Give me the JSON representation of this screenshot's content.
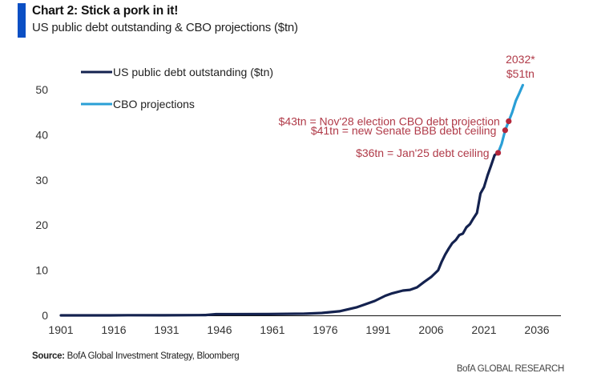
{
  "header": {
    "title": "Chart 2: Stick a pork in it!",
    "subtitle": "US public debt outstanding & CBO projections ($tn)"
  },
  "footer": {
    "source_label": "Source:",
    "source_text": "BofA Global Investment Strategy, Bloomberg",
    "brand": "BofA GLOBAL RESEARCH"
  },
  "colors": {
    "accent": "#0b4fc4",
    "debt_line": "#14224f",
    "projection_line": "#2a9fd6",
    "annotation": "#b03a48",
    "marker": "#b3283c"
  },
  "chart_data": {
    "type": "line",
    "title": "Chart 2: Stick a pork in it!",
    "subtitle": "US public debt outstanding & CBO projections ($tn)",
    "xlabel": "",
    "ylabel": "",
    "xlim": [
      1901,
      2045
    ],
    "ylim": [
      0,
      55
    ],
    "x_ticks": [
      1901,
      1916,
      1931,
      1946,
      1961,
      1976,
      1991,
      2006,
      2021,
      2036
    ],
    "y_ticks": [
      0,
      10,
      20,
      30,
      40,
      50
    ],
    "grid": false,
    "legend_position": "top-left",
    "series": [
      {
        "name": "US public debt outstanding ($tn)",
        "x": [
          1901,
          1915,
          1920,
          1930,
          1940,
          1942,
          1945,
          1950,
          1960,
          1970,
          1975,
          1980,
          1985,
          1990,
          1993,
          1995,
          1998,
          2000,
          2002,
          2004,
          2006,
          2008,
          2009,
          2010,
          2011,
          2012,
          2013,
          2014,
          2015,
          2016,
          2017,
          2018,
          2019,
          2020,
          2021,
          2022,
          2023,
          2024,
          2025
        ],
        "y": [
          0.0,
          0.0,
          0.03,
          0.02,
          0.05,
          0.07,
          0.26,
          0.26,
          0.29,
          0.37,
          0.54,
          0.9,
          1.8,
          3.2,
          4.35,
          4.9,
          5.5,
          5.65,
          6.2,
          7.4,
          8.5,
          10.0,
          11.9,
          13.5,
          14.8,
          16.0,
          16.7,
          17.8,
          18.1,
          19.5,
          20.2,
          21.5,
          22.7,
          27.0,
          28.4,
          31.0,
          33.2,
          35.5,
          36.0
        ]
      },
      {
        "name": "CBO projections",
        "x": [
          2025,
          2026,
          2027,
          2028,
          2029,
          2030,
          2031,
          2032
        ],
        "y": [
          36.0,
          38.0,
          41.0,
          43.0,
          45.0,
          47.5,
          49.2,
          51.0
        ]
      }
    ],
    "markers": [
      {
        "x": 2025,
        "y": 36,
        "label": "$36tn = Jan'25 debt ceiling"
      },
      {
        "x": 2027,
        "y": 41,
        "label": "$41tn = new Senate BBB debt ceiling"
      },
      {
        "x": 2028,
        "y": 43,
        "label": "$43tn = Nov'28 election CBO debt projection"
      }
    ],
    "end_annotation": {
      "x": 2032,
      "y": 51,
      "line1": "2032*",
      "line2": "$51tn"
    }
  }
}
